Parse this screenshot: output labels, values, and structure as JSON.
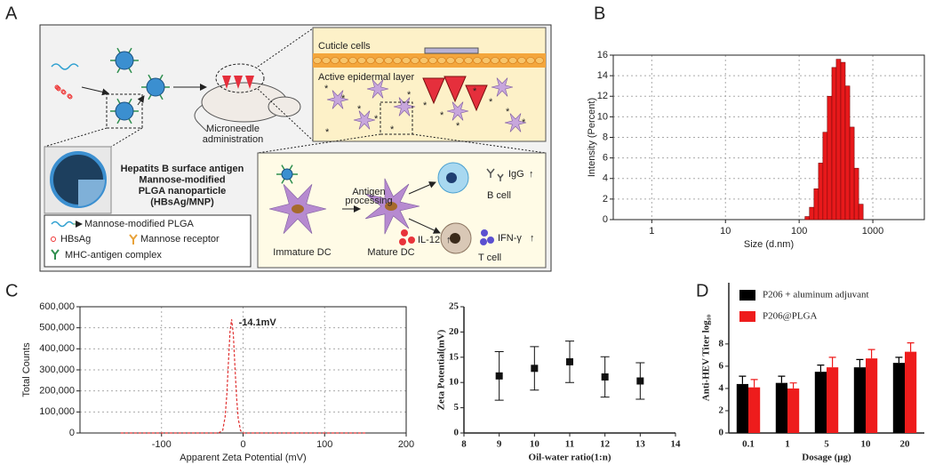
{
  "labels": [
    "A",
    "B",
    "C",
    "D"
  ],
  "diagram": {
    "skin": [
      "Cuticle cells",
      "Active epidermal layer"
    ],
    "administration": [
      "Microneedle",
      "administration"
    ],
    "nanoparticle": [
      "Hepatits B surface antigen",
      "Mannose-modified",
      "PLGA nanoparticle",
      "(HBsAg/MNP)"
    ],
    "legend": [
      "Mannose-modified PLGA",
      "HBsAg",
      "Mannose receptor",
      "MHC-antigen complex"
    ],
    "process": {
      "step": [
        "Antigen",
        "processing"
      ],
      "immature": "Immature DC",
      "mature": "Mature DC",
      "b_cell": "B cell",
      "t_cell": "T cell",
      "igg": "IgG",
      "il12": "IL-12",
      "ifn": "IFN-γ",
      "up": "↑"
    }
  },
  "chart_data": [
    {
      "type": "histogram",
      "xlabel": "Size (d.nm)",
      "ylabel": "Intensity (Percent)",
      "bins": [
        120,
        138,
        159,
        183,
        210,
        241,
        278,
        319,
        367,
        422,
        486,
        559,
        642,
        739
      ],
      "values": [
        0.3,
        1.2,
        3,
        5.5,
        8.5,
        12,
        14.8,
        15.6,
        15.3,
        13,
        9,
        5,
        1.5
      ],
      "color": "#e8191b",
      "xlog": true,
      "xlim": [
        0.3,
        5000
      ],
      "xticks": [
        1,
        10,
        100,
        1000
      ],
      "ylim": [
        0,
        16
      ],
      "yticks": [
        0,
        2,
        4,
        6,
        8,
        10,
        12,
        14,
        16
      ],
      "grid": true
    },
    {
      "type": "line",
      "xlabel": "Apparent Zeta Potential (mV)",
      "ylabel": "Total Counts",
      "x": [
        -150,
        -30,
        -25,
        -22,
        -20,
        -18,
        -16,
        -14.1,
        -12,
        -10,
        -8,
        -6,
        -3,
        0,
        150
      ],
      "values": [
        0,
        0,
        13000,
        77000,
        182000,
        336000,
        482000,
        540000,
        470000,
        318000,
        169000,
        69000,
        11000,
        0,
        0
      ],
      "color": "#e03030",
      "line_style": "dashed",
      "xlim": [
        -200,
        200
      ],
      "xticks": [
        -100,
        0,
        100,
        200
      ],
      "ylim": [
        0,
        600000
      ],
      "yticks": [
        0,
        {
          "value": 100000,
          "label": "100,000"
        },
        {
          "value": 200000,
          "label": "200,000"
        },
        {
          "value": 300000,
          "label": "300,000"
        },
        {
          "value": 400000,
          "label": "400,000"
        },
        {
          "value": 500000,
          "label": "500,000"
        },
        {
          "value": 600000,
          "label": "600,000"
        }
      ],
      "grid": true,
      "annotation": {
        "text": "-14.1mV",
        "x": -14.1,
        "y": 540000
      }
    },
    {
      "type": "scatter",
      "xlabel": "Oil-water ratio(1:n)",
      "ylabel": "Zeta Potential(mV)",
      "x": [
        9,
        10,
        11,
        12,
        13
      ],
      "values": [
        11.3,
        12.8,
        14.1,
        11.1,
        10.3
      ],
      "errors": [
        4.8,
        4.3,
        4.1,
        4,
        3.6
      ],
      "color": "#111111",
      "xlim": [
        8,
        14
      ],
      "xticks": [
        8,
        9,
        10,
        11,
        12,
        13,
        14
      ],
      "ylim": [
        0,
        25
      ],
      "yticks": [
        0,
        5,
        10,
        15,
        20,
        25
      ],
      "grid": false
    },
    {
      "type": "bar",
      "xlabel": "Dosage (μg)",
      "ylabel": "Anti-HEV Titer log₁₀",
      "categories": [
        "0.1",
        "1",
        "5",
        "10",
        "20"
      ],
      "series": [
        {
          "name": "P206 + aluminum adjuvant",
          "color": "#000000",
          "values": [
            4.4,
            4.5,
            5.5,
            5.9,
            6.3
          ],
          "errors": [
            0.7,
            0.6,
            0.6,
            0.7,
            0.5
          ]
        },
        {
          "name": "P206@PLGA",
          "color": "#ee1c1c",
          "values": [
            4.1,
            4.0,
            5.9,
            6.7,
            7.3
          ],
          "errors": [
            0.7,
            0.5,
            0.9,
            0.8,
            0.8
          ]
        }
      ],
      "ylim": [
        0,
        13.5
      ],
      "yticks": [
        0,
        2,
        4,
        6,
        8
      ],
      "legend": "upper left",
      "grid": false
    }
  ]
}
